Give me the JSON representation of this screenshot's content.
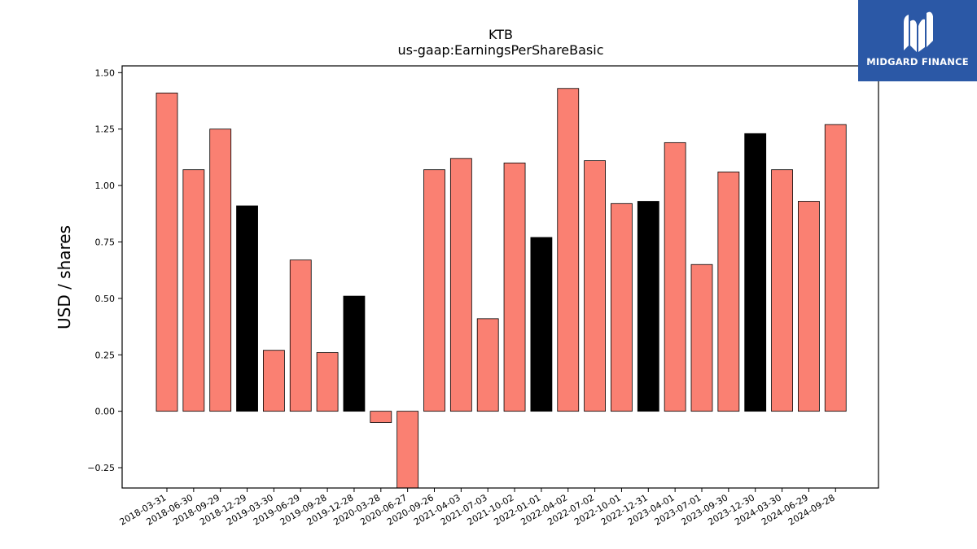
{
  "chart_data": {
    "type": "bar",
    "title": "KTB",
    "subtitle": "us-gaap:EarningsPerShareBasic",
    "xlabel": "",
    "ylabel": "USD / shares",
    "ylim": [
      -0.34,
      1.53
    ],
    "yticks": [
      "−0.25",
      "0.00",
      "0.25",
      "0.50",
      "0.75",
      "1.00",
      "1.25",
      "1.50"
    ],
    "ytick_values": [
      -0.25,
      0,
      0.25,
      0.5,
      0.75,
      1.0,
      1.25,
      1.5
    ],
    "grid": false,
    "categories": [
      "2018-03-31",
      "2018-06-30",
      "2018-09-29",
      "2018-12-29",
      "2019-03-30",
      "2019-06-29",
      "2019-09-28",
      "2019-12-28",
      "2020-03-28",
      "2020-06-27",
      "2020-09-26",
      "2021-04-03",
      "2021-07-03",
      "2021-10-02",
      "2022-01-01",
      "2022-04-02",
      "2022-07-02",
      "2022-10-01",
      "2022-12-31",
      "2023-04-01",
      "2023-07-01",
      "2023-09-30",
      "2023-12-30",
      "2024-03-30",
      "2024-06-29",
      "2024-09-28"
    ],
    "values": [
      1.41,
      1.07,
      1.25,
      0.91,
      0.27,
      0.67,
      0.26,
      0.51,
      -0.05,
      -0.34,
      1.07,
      1.12,
      0.41,
      1.1,
      0.77,
      1.43,
      1.11,
      0.92,
      0.93,
      1.19,
      0.65,
      1.06,
      1.23,
      1.07,
      0.93,
      1.27
    ],
    "highlight": [
      false,
      false,
      false,
      true,
      false,
      false,
      false,
      true,
      false,
      false,
      false,
      false,
      false,
      false,
      true,
      false,
      false,
      false,
      true,
      false,
      false,
      false,
      true,
      false,
      false,
      false
    ],
    "colors": {
      "default": "#fa8072",
      "highlight": "#000000",
      "edge": "#000000"
    }
  },
  "logo": {
    "text": "MIDGARD FINANCE",
    "background": "#2b58a6"
  }
}
